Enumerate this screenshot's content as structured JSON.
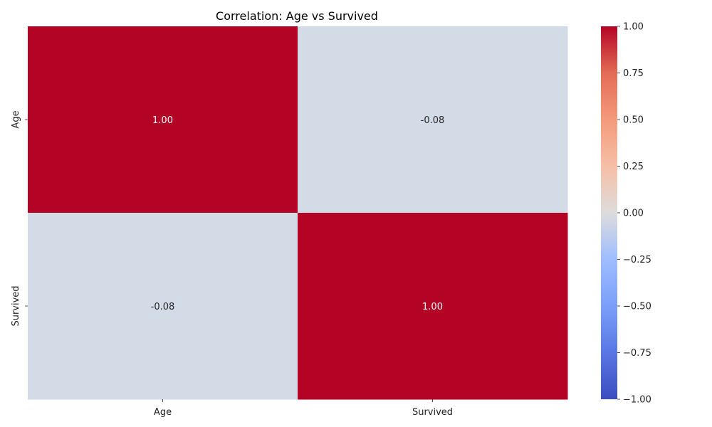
{
  "chart_data": {
    "type": "heatmap",
    "title": "Correlation: Age vs Survived",
    "xlabel": "",
    "ylabel": "",
    "x_categories": [
      "Age",
      "Survived"
    ],
    "y_categories": [
      "Age",
      "Survived"
    ],
    "values": [
      [
        1.0,
        -0.08
      ],
      [
        -0.08,
        1.0
      ]
    ],
    "value_format": "0.00",
    "colormap": "coolwarm",
    "vmin": -1.0,
    "vmax": 1.0,
    "colorbar": {
      "ticks": [
        1.0,
        0.75,
        0.5,
        0.25,
        0.0,
        -0.25,
        -0.5,
        -0.75,
        -1.0
      ],
      "tick_labels": [
        "1.00",
        "0.75",
        "0.50",
        "0.25",
        "0.00",
        "−0.25",
        "−0.50",
        "−0.75",
        "−1.00"
      ],
      "placement": "right"
    },
    "colors": {
      "high": "#b40426",
      "mid": "#dddcdc",
      "low": "#3b4cc0",
      "near_zero_cell": "#d3dbe7"
    }
  }
}
